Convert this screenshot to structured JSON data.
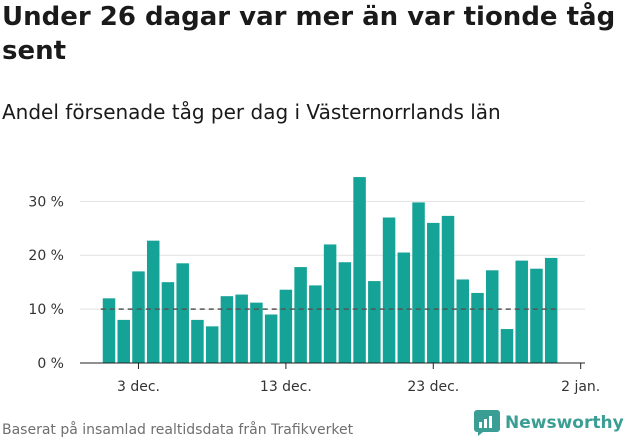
{
  "title": "Under 26 dagar var mer än var tionde tåg sent",
  "subtitle": "Andel försenade tåg per dag i Västernorrlands län",
  "footer": "Baserat på insamlad realtidsdata från Trafikverket",
  "brand": {
    "name": "Newsworthy",
    "logo_icon": "newsworthy-logo-icon"
  },
  "colors": {
    "bar": "#14a396",
    "threshold": "#555555",
    "axis": "#222222",
    "grid": "#e2e2e2",
    "brand": "#3a9e94"
  },
  "chart_data": {
    "type": "bar",
    "categories": [
      "2023-12-01",
      "2023-12-02",
      "2023-12-03",
      "2023-12-04",
      "2023-12-05",
      "2023-12-06",
      "2023-12-07",
      "2023-12-08",
      "2023-12-09",
      "2023-12-10",
      "2023-12-11",
      "2023-12-12",
      "2023-12-13",
      "2023-12-14",
      "2023-12-15",
      "2023-12-16",
      "2023-12-17",
      "2023-12-18",
      "2023-12-19",
      "2023-12-20",
      "2023-12-21",
      "2023-12-22",
      "2023-12-23",
      "2023-12-24",
      "2023-12-25",
      "2023-12-26",
      "2023-12-27",
      "2023-12-28",
      "2023-12-29",
      "2023-12-30",
      "2023-12-31",
      "2024-01-01"
    ],
    "values": [
      12,
      8,
      17,
      22.7,
      15,
      18.5,
      8,
      6.8,
      12.4,
      12.7,
      11.2,
      9,
      13.6,
      17.8,
      14.4,
      22,
      18.7,
      34.5,
      15.2,
      27,
      20.5,
      29.8,
      26,
      27.3,
      15.5,
      13,
      17.2,
      6.3,
      19,
      17.5,
      19.5,
      0
    ],
    "ylim": [
      0,
      36
    ],
    "yticks": [
      0,
      10,
      20,
      30
    ],
    "ytick_labels": [
      "0 %",
      "10 %",
      "20 %",
      "30 %"
    ],
    "xtick_categories": [
      "2023-12-03",
      "2023-12-13",
      "2023-12-23",
      "2024-01-02"
    ],
    "xtick_labels": [
      "3 dec.",
      "13 dec.",
      "23 dec.",
      "2 jan."
    ],
    "threshold": 10,
    "grid": true
  }
}
